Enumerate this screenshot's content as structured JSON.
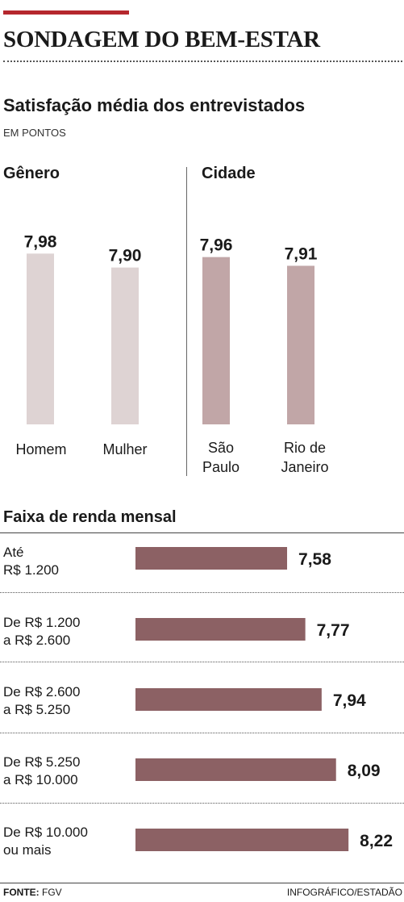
{
  "header": {
    "title": "SONDAGEM DO BEM-ESTAR"
  },
  "chart_data": [
    {
      "type": "bar",
      "title": "Satisfação média dos entrevistados",
      "unit": "EM PONTOS",
      "groups": [
        "Gênero",
        "Cidade"
      ],
      "categories": [
        {
          "group": 0,
          "lines": [
            "Homem"
          ]
        },
        {
          "group": 0,
          "lines": [
            "Mulher"
          ]
        },
        {
          "group": 1,
          "lines": [
            "São",
            "Paulo"
          ]
        },
        {
          "group": 1,
          "lines": [
            "Rio de",
            "Janeiro"
          ]
        }
      ],
      "values": [
        7.98,
        7.9,
        7.96,
        7.91
      ],
      "value_labels": [
        "7,98",
        "7,90",
        "7,96",
        "7,91"
      ],
      "group_colors": [
        "#ded3d3",
        "#c1a6a7"
      ]
    },
    {
      "type": "bar",
      "orientation": "horizontal",
      "title": "Faixa de renda mensal",
      "categories": [
        [
          "Até",
          "R$ 1.200"
        ],
        [
          "De R$ 1.200",
          "a R$ 2.600"
        ],
        [
          "De R$ 2.600",
          "a R$ 5.250"
        ],
        [
          "De R$ 5.250",
          "a R$ 10.000"
        ],
        [
          "De R$ 10.000",
          "ou mais"
        ]
      ],
      "values": [
        7.58,
        7.77,
        7.94,
        8.09,
        8.22
      ],
      "value_labels": [
        "7,58",
        "7,77",
        "7,94",
        "8,09",
        "8,22"
      ],
      "color": "#8c6164"
    }
  ],
  "footer": {
    "source_label": "FONTE:",
    "source": "FGV",
    "credit": "INFOGRÁFICO/ESTADÃO"
  }
}
